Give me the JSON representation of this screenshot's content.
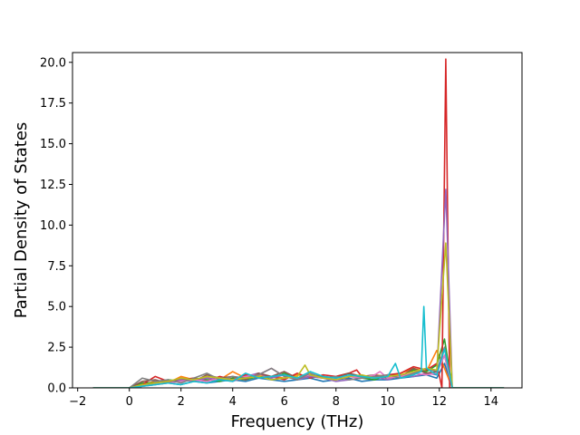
{
  "chart_data": {
    "type": "line",
    "title": "",
    "xlabel": "Frequency (THz)",
    "ylabel": "Partial Density of States",
    "xlim": [
      -2.2,
      15.2
    ],
    "ylim": [
      0.0,
      20.6
    ],
    "x_ticks": [
      -2,
      0,
      2,
      4,
      6,
      8,
      10,
      12,
      14
    ],
    "x_tick_labels": [
      "−2",
      "0",
      "2",
      "4",
      "6",
      "8",
      "10",
      "12",
      "14"
    ],
    "y_ticks": [
      0.0,
      2.5,
      5.0,
      7.5,
      10.0,
      12.5,
      15.0,
      17.5,
      20.0
    ],
    "y_tick_labels": [
      "0.0",
      "2.5",
      "5.0",
      "7.5",
      "10.0",
      "12.5",
      "15.0",
      "17.5",
      "20.0"
    ],
    "grid": false,
    "legend": "none",
    "series": [
      {
        "color": "#1f77b4",
        "x": [
          -1.4,
          0.0,
          0.5,
          1.0,
          1.5,
          2.0,
          2.5,
          3.0,
          3.5,
          4.0,
          4.5,
          5.0,
          5.5,
          6.0,
          6.5,
          7.0,
          7.5,
          8.0,
          8.5,
          9.0,
          9.5,
          10.0,
          10.5,
          11.0,
          11.5,
          11.9,
          12.2,
          12.5,
          14.5
        ],
        "y": [
          0,
          0,
          0.1,
          0.2,
          0.3,
          0.2,
          0.4,
          0.3,
          0.4,
          0.5,
          0.4,
          0.6,
          0.5,
          0.4,
          0.5,
          0.6,
          0.4,
          0.5,
          0.6,
          0.4,
          0.5,
          0.5,
          0.6,
          0.7,
          0.8,
          0.6,
          1.5,
          0,
          0
        ]
      },
      {
        "color": "#ff7f0e",
        "x": [
          -1.4,
          0.0,
          0.5,
          1.0,
          1.5,
          2.0,
          2.5,
          3.0,
          3.5,
          4.0,
          4.5,
          5.0,
          5.5,
          6.0,
          6.5,
          7.0,
          7.5,
          8.0,
          8.5,
          9.0,
          9.5,
          10.0,
          10.5,
          11.0,
          11.5,
          11.9,
          12.2,
          12.5,
          14.5
        ],
        "y": [
          0,
          0,
          0.2,
          0.4,
          0.3,
          0.7,
          0.5,
          0.6,
          0.5,
          1.0,
          0.6,
          0.8,
          0.7,
          0.6,
          0.8,
          0.7,
          0.6,
          0.5,
          0.7,
          0.6,
          0.8,
          0.7,
          0.9,
          1.2,
          1.0,
          2.3,
          1.2,
          0,
          0
        ]
      },
      {
        "color": "#2ca02c",
        "x": [
          -1.4,
          0.0,
          0.5,
          1.0,
          1.5,
          2.0,
          2.5,
          3.0,
          3.5,
          4.0,
          4.5,
          5.0,
          5.5,
          6.0,
          6.5,
          7.0,
          7.5,
          8.0,
          8.5,
          9.0,
          9.5,
          10.0,
          10.5,
          11.0,
          11.5,
          11.9,
          12.2,
          12.5,
          14.5
        ],
        "y": [
          0,
          0,
          0.3,
          0.3,
          0.5,
          0.4,
          0.6,
          0.5,
          0.4,
          0.6,
          0.5,
          0.7,
          0.6,
          0.9,
          0.5,
          0.8,
          0.6,
          0.7,
          0.9,
          0.6,
          0.5,
          0.8,
          0.7,
          1.1,
          1.0,
          1.4,
          3.0,
          0,
          0
        ]
      },
      {
        "color": "#d62728",
        "x": [
          -1.4,
          0.0,
          0.5,
          1.0,
          1.5,
          2.0,
          2.5,
          3.0,
          3.5,
          4.0,
          4.5,
          5.0,
          5.5,
          6.0,
          6.5,
          7.0,
          7.5,
          8.0,
          8.5,
          8.8,
          9.0,
          9.5,
          10.0,
          10.5,
          11.0,
          11.5,
          11.9,
          12.1,
          12.25,
          12.4,
          14.5
        ],
        "y": [
          0,
          0,
          0.2,
          0.7,
          0.4,
          0.5,
          0.6,
          0.4,
          0.7,
          0.5,
          0.8,
          0.6,
          0.7,
          0.5,
          0.9,
          0.6,
          0.8,
          0.7,
          0.9,
          1.1,
          0.7,
          0.6,
          0.8,
          0.9,
          1.3,
          1.1,
          1.5,
          0,
          20.2,
          0,
          0
        ]
      },
      {
        "color": "#9467bd",
        "x": [
          -1.4,
          0.0,
          0.5,
          1.0,
          1.5,
          2.0,
          2.5,
          3.0,
          3.5,
          4.0,
          4.5,
          5.0,
          5.5,
          6.0,
          6.5,
          7.0,
          7.5,
          8.0,
          8.5,
          9.0,
          9.5,
          10.0,
          10.5,
          11.0,
          11.5,
          11.9,
          12.25,
          12.5,
          14.5
        ],
        "y": [
          0,
          0,
          0.1,
          0.3,
          0.4,
          0.5,
          0.4,
          0.6,
          0.5,
          0.4,
          0.7,
          0.9,
          0.6,
          0.8,
          0.5,
          0.7,
          0.6,
          0.4,
          0.5,
          0.6,
          0.7,
          0.5,
          0.8,
          0.7,
          0.9,
          0.8,
          12.2,
          0,
          0
        ]
      },
      {
        "color": "#8c564b",
        "x": [
          -1.4,
          0.0,
          0.5,
          1.0,
          1.5,
          2.0,
          2.5,
          3.0,
          3.5,
          4.0,
          4.5,
          5.0,
          5.5,
          6.0,
          6.5,
          7.0,
          7.5,
          8.0,
          8.5,
          9.0,
          9.5,
          10.0,
          10.5,
          11.0,
          11.5,
          11.9,
          12.2,
          12.5,
          14.5
        ],
        "y": [
          0,
          0,
          0.4,
          0.5,
          0.3,
          0.6,
          0.4,
          0.8,
          0.6,
          0.7,
          0.5,
          0.9,
          0.7,
          1.0,
          0.6,
          0.8,
          0.7,
          0.6,
          0.9,
          0.7,
          0.8,
          0.6,
          0.7,
          1.2,
          0.9,
          1.0,
          2.0,
          0,
          0
        ]
      },
      {
        "color": "#e377c2",
        "x": [
          -1.4,
          0.0,
          0.5,
          1.0,
          1.5,
          2.0,
          2.5,
          3.0,
          3.5,
          4.0,
          4.5,
          5.0,
          5.5,
          6.0,
          6.5,
          7.0,
          7.5,
          8.0,
          8.5,
          9.0,
          9.5,
          9.7,
          10.0,
          10.5,
          11.0,
          11.5,
          11.9,
          12.2,
          12.5,
          14.5
        ],
        "y": [
          0,
          0,
          0.1,
          0.2,
          0.3,
          0.4,
          0.5,
          0.4,
          0.6,
          0.5,
          0.7,
          0.8,
          1.2,
          0.7,
          0.6,
          0.8,
          0.6,
          0.5,
          0.7,
          0.6,
          0.8,
          1.0,
          0.6,
          0.7,
          0.9,
          0.8,
          0.9,
          2.0,
          0,
          0
        ]
      },
      {
        "color": "#7f7f7f",
        "x": [
          -1.4,
          0.0,
          0.5,
          1.0,
          1.5,
          2.0,
          2.5,
          3.0,
          3.5,
          4.0,
          4.5,
          5.0,
          5.5,
          6.0,
          6.5,
          7.0,
          7.5,
          8.0,
          8.5,
          9.0,
          9.5,
          10.0,
          10.5,
          11.0,
          11.5,
          11.9,
          12.2,
          12.5,
          14.5
        ],
        "y": [
          0,
          0,
          0.6,
          0.4,
          0.5,
          0.3,
          0.6,
          0.9,
          0.5,
          0.7,
          0.6,
          0.8,
          1.2,
          0.7,
          0.5,
          0.9,
          0.6,
          0.7,
          0.5,
          0.6,
          0.7,
          0.8,
          0.6,
          0.9,
          1.2,
          1.0,
          2.5,
          0,
          0
        ]
      },
      {
        "color": "#bcbd22",
        "x": [
          -1.4,
          0.0,
          0.5,
          1.0,
          1.5,
          2.0,
          2.5,
          3.0,
          3.5,
          4.0,
          4.5,
          5.0,
          5.5,
          6.0,
          6.5,
          6.8,
          7.0,
          7.5,
          8.0,
          8.5,
          9.0,
          9.5,
          10.0,
          10.5,
          11.0,
          11.5,
          11.9,
          12.25,
          12.5,
          14.5
        ],
        "y": [
          0,
          0,
          0.2,
          0.3,
          0.4,
          0.6,
          0.5,
          0.7,
          0.6,
          0.5,
          0.6,
          0.7,
          0.5,
          0.6,
          0.7,
          1.4,
          0.8,
          0.6,
          0.5,
          0.7,
          0.8,
          0.6,
          0.7,
          0.8,
          1.0,
          1.2,
          1.1,
          8.9,
          0,
          0
        ]
      },
      {
        "color": "#17becf",
        "x": [
          -1.4,
          0.0,
          0.5,
          1.0,
          1.5,
          2.0,
          2.5,
          3.0,
          3.5,
          4.0,
          4.5,
          5.0,
          5.5,
          6.0,
          6.5,
          7.0,
          7.5,
          8.0,
          8.5,
          9.0,
          9.5,
          10.0,
          10.3,
          10.5,
          11.0,
          11.3,
          11.4,
          11.5,
          11.9,
          12.2,
          12.5,
          14.5
        ],
        "y": [
          0,
          0,
          0.1,
          0.2,
          0.3,
          0.2,
          0.4,
          0.3,
          0.5,
          0.4,
          0.9,
          0.6,
          0.7,
          0.8,
          0.6,
          1.0,
          0.7,
          0.6,
          0.8,
          0.7,
          0.6,
          0.7,
          1.5,
          0.6,
          0.8,
          1.0,
          5.0,
          1.2,
          0.8,
          2.4,
          0,
          0
        ]
      }
    ]
  }
}
